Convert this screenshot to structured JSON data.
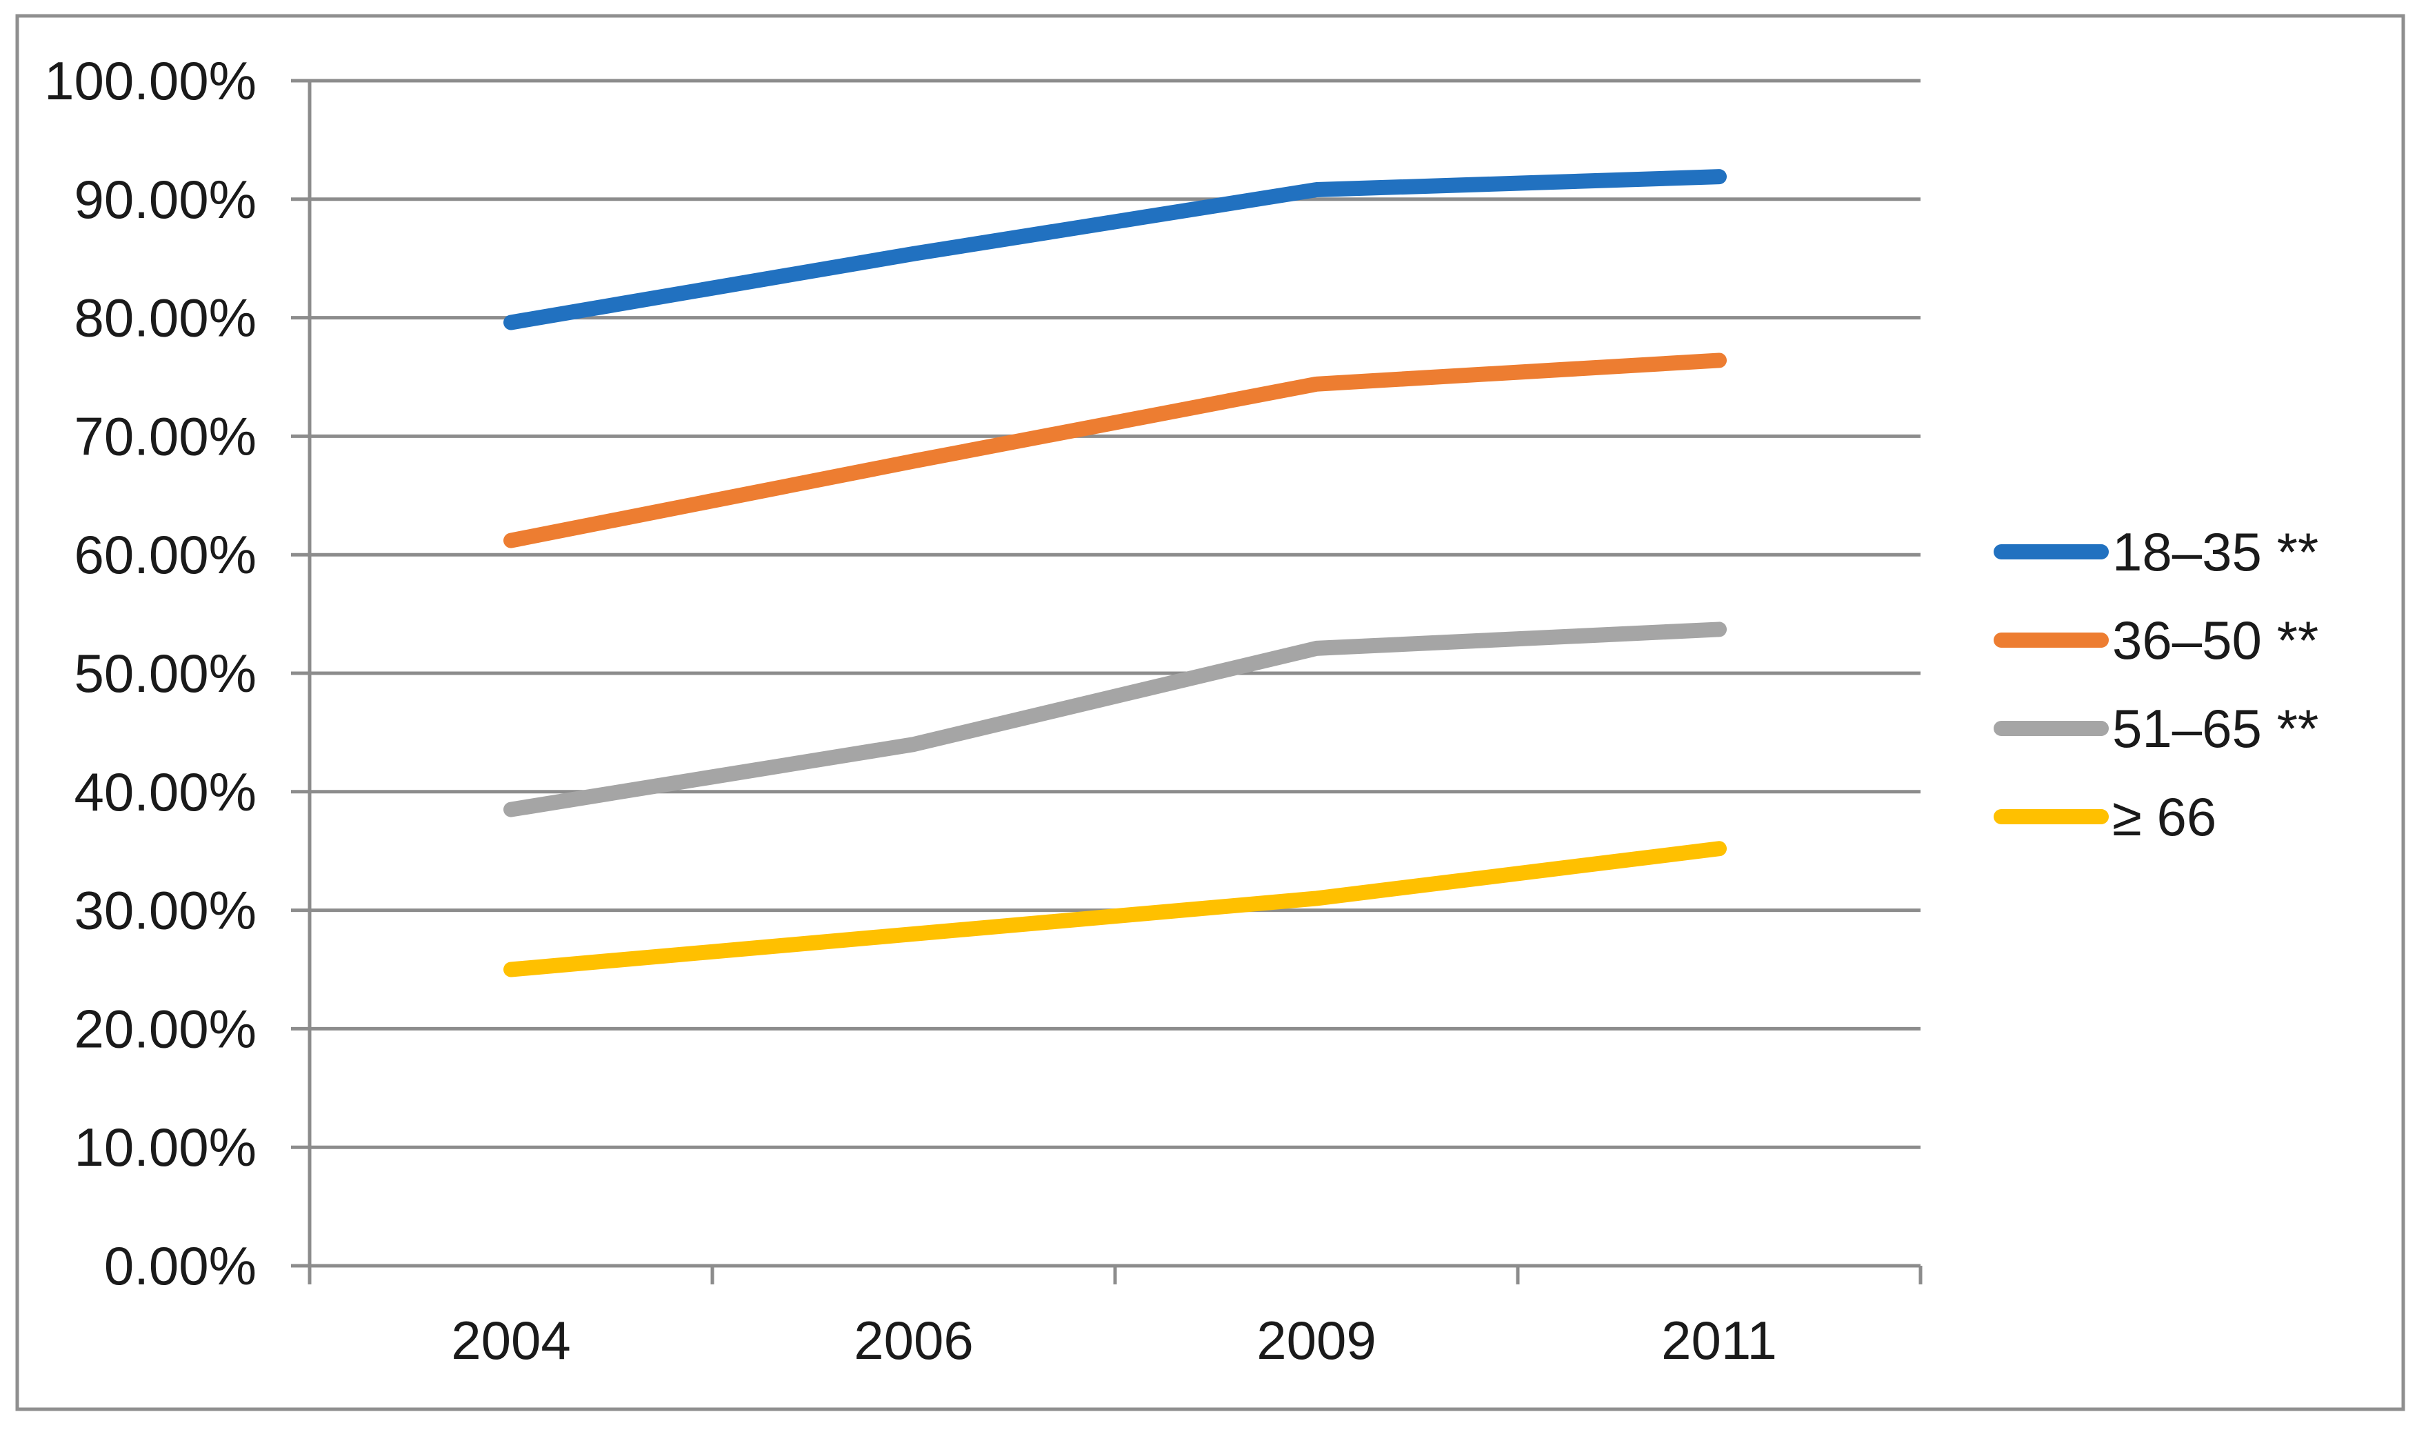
{
  "chart_data": {
    "type": "line",
    "title": "",
    "xlabel": "",
    "ylabel": "",
    "categories": [
      "2004",
      "2006",
      "2009",
      "2011"
    ],
    "series": [
      {
        "name": "18–35 **",
        "color": "#2171C0",
        "values": [
          79.6,
          85.4,
          90.8,
          91.9
        ]
      },
      {
        "name": "36–50 **",
        "color": "#ED7D31",
        "values": [
          61.2,
          67.9,
          74.4,
          76.4
        ]
      },
      {
        "name": "51–65 **",
        "color": "#A5A5A5",
        "values": [
          38.5,
          44.0,
          52.1,
          53.7
        ]
      },
      {
        "name": "≥ 66",
        "color": "#FFC000",
        "values": [
          25.0,
          28.0,
          31.0,
          35.2
        ]
      }
    ],
    "ylim": [
      0,
      100
    ],
    "ytick_step": 10,
    "ytick_labels": [
      "0.00%",
      "10.00%",
      "20.00%",
      "30.00%",
      "40.00%",
      "50.00%",
      "60.00%",
      "70.00%",
      "80.00%",
      "90.00%",
      "100.00%"
    ],
    "grid": true,
    "legend_position": "right",
    "colors": {
      "axis_and_grid": "#8C8C8C",
      "outer_border": "#8F8F8F",
      "tick_label_text": "#1a1a1a",
      "background": "#ffffff"
    }
  }
}
